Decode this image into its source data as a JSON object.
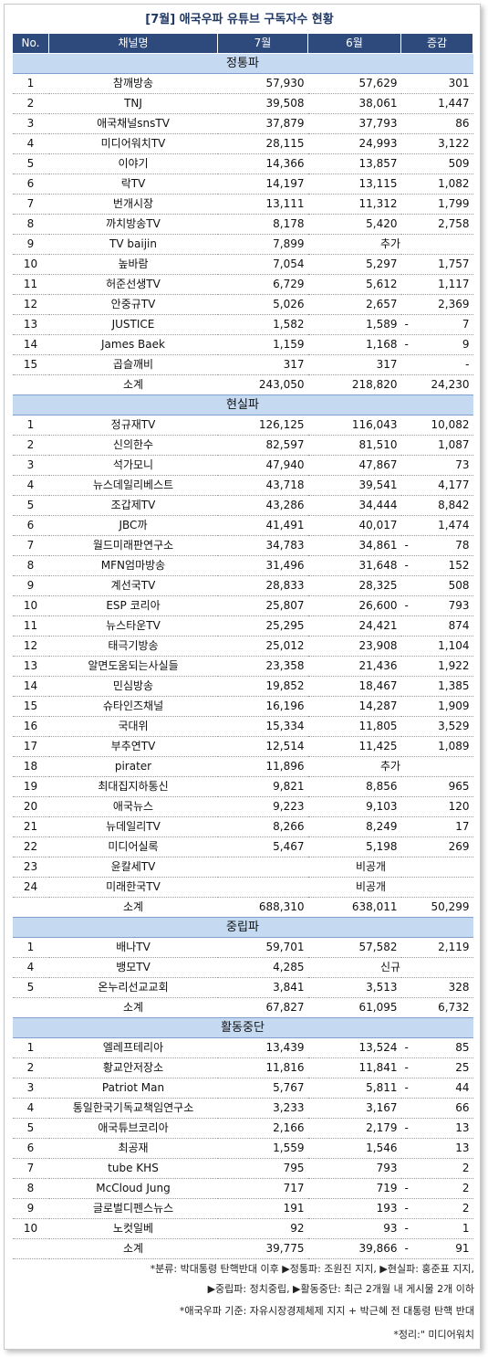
{
  "title": "[7월] 애국우파 유튜브 구독자수 현황",
  "header": [
    "No.",
    "채널명",
    "7월",
    "6월",
    "증감"
  ],
  "sections": [
    {
      "name": "정통파",
      "rows": [
        {
          "no": "1",
          "name": "참깨방송",
          "jul": "57,930",
          "jun": "57,629",
          "neg": "",
          "diff": "301"
        },
        {
          "no": "2",
          "name": "TNJ",
          "jul": "39,508",
          "jun": "38,061",
          "neg": "",
          "diff": "1,447"
        },
        {
          "no": "3",
          "name": "애국채널snsTV",
          "jul": "37,879",
          "jun": "37,793",
          "neg": "",
          "diff": "86"
        },
        {
          "no": "4",
          "name": "미디어워치TV",
          "jul": "28,115",
          "jun": "24,993",
          "neg": "",
          "diff": "3,122"
        },
        {
          "no": "5",
          "name": "이야기",
          "jul": "14,366",
          "jun": "13,857",
          "neg": "",
          "diff": "509"
        },
        {
          "no": "6",
          "name": "락TV",
          "jul": "14,197",
          "jun": "13,115",
          "neg": "",
          "diff": "1,082"
        },
        {
          "no": "7",
          "name": "번개시장",
          "jul": "13,111",
          "jun": "11,312",
          "neg": "",
          "diff": "1,799"
        },
        {
          "no": "8",
          "name": "까치방송TV",
          "jul": "8,178",
          "jun": "5,420",
          "neg": "",
          "diff": "2,758"
        },
        {
          "no": "9",
          "name": "TV baijin",
          "jul": "7,899",
          "merged": "추가"
        },
        {
          "no": "10",
          "name": "높바람",
          "jul": "7,054",
          "jun": "5,297",
          "neg": "",
          "diff": "1,757"
        },
        {
          "no": "11",
          "name": "허준선생TV",
          "jul": "6,729",
          "jun": "5,612",
          "neg": "",
          "diff": "1,117"
        },
        {
          "no": "12",
          "name": "안중규TV",
          "jul": "5,026",
          "jun": "2,657",
          "neg": "",
          "diff": "2,369"
        },
        {
          "no": "13",
          "name": "JUSTICE",
          "jul": "1,582",
          "jun": "1,589",
          "neg": "-",
          "diff": "7"
        },
        {
          "no": "14",
          "name": "James Baek",
          "jul": "1,159",
          "jun": "1,168",
          "neg": "-",
          "diff": "9"
        },
        {
          "no": "15",
          "name": "곱슬깨비",
          "jul": "317",
          "jun": "317",
          "neg": "",
          "diff": "-"
        }
      ],
      "subtotal": {
        "label": "소계",
        "jul": "243,050",
        "jun": "218,820",
        "neg": "",
        "diff": "24,230"
      }
    },
    {
      "name": "현실파",
      "rows": [
        {
          "no": "1",
          "name": "정규재TV",
          "jul": "126,125",
          "jun": "116,043",
          "neg": "",
          "diff": "10,082"
        },
        {
          "no": "2",
          "name": "신의한수",
          "jul": "82,597",
          "jun": "81,510",
          "neg": "",
          "diff": "1,087"
        },
        {
          "no": "3",
          "name": "석가모니",
          "jul": "47,940",
          "jun": "47,867",
          "neg": "",
          "diff": "73"
        },
        {
          "no": "4",
          "name": "뉴스데일리베스트",
          "jul": "43,718",
          "jun": "39,541",
          "neg": "",
          "diff": "4,177"
        },
        {
          "no": "5",
          "name": "조갑제TV",
          "jul": "43,286",
          "jun": "34,444",
          "neg": "",
          "diff": "8,842"
        },
        {
          "no": "6",
          "name": "JBC까",
          "jul": "41,491",
          "jun": "40,017",
          "neg": "",
          "diff": "1,474"
        },
        {
          "no": "7",
          "name": "월드미래판연구소",
          "jul": "34,783",
          "jun": "34,861",
          "neg": "-",
          "diff": "78"
        },
        {
          "no": "8",
          "name": "MFN엄마방송",
          "jul": "31,496",
          "jun": "31,648",
          "neg": "-",
          "diff": "152"
        },
        {
          "no": "9",
          "name": "계선국TV",
          "jul": "28,833",
          "jun": "28,325",
          "neg": "",
          "diff": "508"
        },
        {
          "no": "10",
          "name": "ESP 코리아",
          "jul": "25,807",
          "jun": "26,600",
          "neg": "-",
          "diff": "793"
        },
        {
          "no": "11",
          "name": "뉴스타운TV",
          "jul": "25,295",
          "jun": "24,421",
          "neg": "",
          "diff": "874"
        },
        {
          "no": "12",
          "name": "태극기방송",
          "jul": "25,012",
          "jun": "23,908",
          "neg": "",
          "diff": "1,104"
        },
        {
          "no": "13",
          "name": "알면도움되는사실들",
          "jul": "23,358",
          "jun": "21,436",
          "neg": "",
          "diff": "1,922"
        },
        {
          "no": "14",
          "name": "민심방송",
          "jul": "19,852",
          "jun": "18,467",
          "neg": "",
          "diff": "1,385"
        },
        {
          "no": "15",
          "name": "슈타인즈채널",
          "jul": "16,196",
          "jun": "14,287",
          "neg": "",
          "diff": "1,909"
        },
        {
          "no": "16",
          "name": "국대위",
          "jul": "15,334",
          "jun": "11,805",
          "neg": "",
          "diff": "3,529"
        },
        {
          "no": "17",
          "name": "부추연TV",
          "jul": "12,514",
          "jun": "11,425",
          "neg": "",
          "diff": "1,089"
        },
        {
          "no": "18",
          "name": "pirater",
          "jul": "11,896",
          "merged": "추가"
        },
        {
          "no": "19",
          "name": "최대집지하통신",
          "jul": "9,821",
          "jun": "8,856",
          "neg": "",
          "diff": "965"
        },
        {
          "no": "20",
          "name": "애국뉴스",
          "jul": "9,223",
          "jun": "9,103",
          "neg": "",
          "diff": "120"
        },
        {
          "no": "21",
          "name": "뉴데일리TV",
          "jul": "8,266",
          "jun": "8,249",
          "neg": "",
          "diff": "17"
        },
        {
          "no": "22",
          "name": "미디어실록",
          "jul": "5,467",
          "jun": "5,198",
          "neg": "",
          "diff": "269"
        },
        {
          "no": "23",
          "name": "윤칼세TV",
          "wide": "비공개"
        },
        {
          "no": "24",
          "name": "미래한국TV",
          "wide": "비공개"
        }
      ],
      "subtotal": {
        "label": "소계",
        "jul": "688,310",
        "jun": "638,011",
        "neg": "",
        "diff": "50,299"
      }
    },
    {
      "name": "중립파",
      "rows": [
        {
          "no": "1",
          "name": "배나TV",
          "jul": "59,701",
          "jun": "57,582",
          "neg": "",
          "diff": "2,119"
        },
        {
          "no": "4",
          "name": "뱅모TV",
          "jul": "4,285",
          "merged": "신규"
        },
        {
          "no": "5",
          "name": "온누리선교교회",
          "jul": "3,841",
          "jun": "3,513",
          "neg": "",
          "diff": "328"
        }
      ],
      "subtotal": {
        "label": "소계",
        "jul": "67,827",
        "jun": "61,095",
        "neg": "",
        "diff": "6,732"
      }
    },
    {
      "name": "활동중단",
      "rows": [
        {
          "no": "1",
          "name": "엘레프테리아",
          "jul": "13,439",
          "jun": "13,524",
          "neg": "-",
          "diff": "85"
        },
        {
          "no": "2",
          "name": "황교안저장소",
          "jul": "11,816",
          "jun": "11,841",
          "neg": "-",
          "diff": "25"
        },
        {
          "no": "3",
          "name": "Patriot Man",
          "jul": "5,767",
          "jun": "5,811",
          "neg": "-",
          "diff": "44"
        },
        {
          "no": "4",
          "name": "통일한국기독교책임연구소",
          "jul": "3,233",
          "jun": "3,167",
          "neg": "",
          "diff": "66"
        },
        {
          "no": "5",
          "name": "애국튜브코리아",
          "jul": "2,166",
          "jun": "2,179",
          "neg": "-",
          "diff": "13"
        },
        {
          "no": "6",
          "name": "최공재",
          "jul": "1,559",
          "jun": "1,546",
          "neg": "",
          "diff": "13"
        },
        {
          "no": "7",
          "name": "tube KHS",
          "jul": "795",
          "jun": "793",
          "neg": "",
          "diff": "2"
        },
        {
          "no": "8",
          "name": "McCloud Jung",
          "jul": "717",
          "jun": "719",
          "neg": "-",
          "diff": "2"
        },
        {
          "no": "9",
          "name": "글로벌디펜스뉴스",
          "jul": "191",
          "jun": "193",
          "neg": "-",
          "diff": "2"
        },
        {
          "no": "10",
          "name": "노컷일베",
          "jul": "92",
          "jun": "93",
          "neg": "-",
          "diff": "1"
        }
      ],
      "subtotal": {
        "label": "소계",
        "jul": "39,775",
        "jun": "39,866",
        "neg": "-",
        "diff": "91"
      }
    }
  ],
  "notes": [
    "*분류: 박대통령 탄핵반대 이후 ▶정통파: 조원진 지지, ▶현실파: 홍준표 지지,",
    "▶중립파: 정치중립, ▶활동중단: 최근 2개월 내 게시물 2개 이하",
    "*애국우파 기준: 자유시장경제체제 지지 + 박근혜 전 대통령 탄핵 반대",
    "*정리:\" 미디어워치"
  ]
}
